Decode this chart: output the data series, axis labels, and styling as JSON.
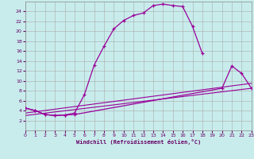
{
  "xlabel": "Windchill (Refroidissement éolien,°C)",
  "background_color": "#c8ecec",
  "grid_color": "#aaaaaa",
  "line_color": "#990099",
  "xlim": [
    0,
    23
  ],
  "ylim": [
    0,
    26
  ],
  "xticks": [
    0,
    1,
    2,
    3,
    4,
    5,
    6,
    7,
    8,
    9,
    10,
    11,
    12,
    13,
    14,
    15,
    16,
    17,
    18,
    19,
    20,
    21,
    22,
    23
  ],
  "yticks": [
    2,
    4,
    6,
    8,
    10,
    12,
    14,
    16,
    18,
    20,
    22,
    24
  ],
  "curve1_x": [
    0,
    1,
    2,
    3,
    4,
    5,
    6,
    7,
    8,
    9,
    10,
    11,
    12,
    13,
    14,
    15,
    16,
    17,
    18
  ],
  "curve1_y": [
    4.5,
    4.0,
    3.2,
    3.0,
    3.1,
    3.5,
    7.2,
    13.2,
    17.0,
    20.5,
    22.2,
    23.2,
    23.7,
    25.2,
    25.5,
    25.2,
    25.0,
    21.0,
    15.5
  ],
  "curve2_x": [
    0,
    1,
    2,
    3,
    4,
    5,
    20,
    21,
    22,
    23
  ],
  "curve2_y": [
    4.5,
    4.0,
    3.2,
    3.0,
    3.1,
    3.2,
    8.5,
    13.0,
    11.5,
    8.5
  ],
  "line1_x": [
    0,
    23
  ],
  "line1_y": [
    3.0,
    8.5
  ],
  "line2_x": [
    0,
    23
  ],
  "line2_y": [
    3.5,
    9.5
  ]
}
